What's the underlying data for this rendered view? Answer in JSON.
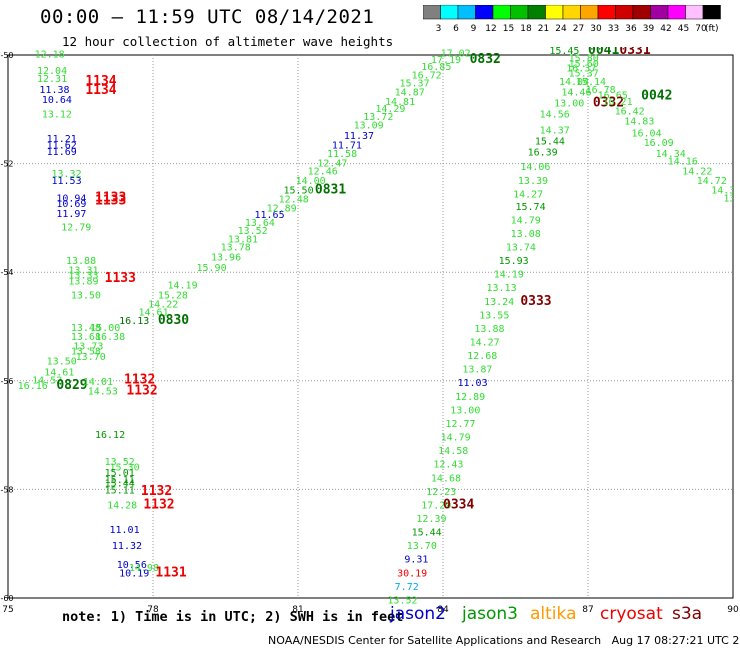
{
  "header": {
    "title": "00:00 – 11:59 UTC 08/14/2021",
    "subtitle": "12 hour collection of altimeter wave heights"
  },
  "legend": {
    "unit_label": "(ft)",
    "bins": [
      {
        "label": "3",
        "color": "#808080"
      },
      {
        "label": "6",
        "color": "#00ffff"
      },
      {
        "label": "9",
        "color": "#00bfff"
      },
      {
        "label": "12",
        "color": "#0000ff"
      },
      {
        "label": "15",
        "color": "#00ff00"
      },
      {
        "label": "18",
        "color": "#00c000"
      },
      {
        "label": "21",
        "color": "#008000"
      },
      {
        "label": "24",
        "color": "#ffff00"
      },
      {
        "label": "27",
        "color": "#ffd700"
      },
      {
        "label": "30",
        "color": "#ffa500"
      },
      {
        "label": "33",
        "color": "#ff0000"
      },
      {
        "label": "36",
        "color": "#d00000"
      },
      {
        "label": "39",
        "color": "#a00000"
      },
      {
        "label": "42",
        "color": "#a000a0"
      },
      {
        "label": "45",
        "color": "#ff00ff"
      },
      {
        "label": "70",
        "color": "#ffc0ff"
      },
      {
        "label": "",
        "color": "#000000"
      }
    ]
  },
  "colors": {
    "light_green": "#33dd33",
    "green": "#009900",
    "dark_green": "#007000",
    "blue": "#0000cc",
    "red": "#ee0000",
    "dark_red": "#800000",
    "gray": "#808080",
    "cyan": "#00aaee",
    "grid": "#999999"
  },
  "axes": {
    "x_ticks": [
      "75",
      "78",
      "81",
      "84",
      "87",
      "90"
    ],
    "y_ticks": [
      "-50",
      "-52",
      "-54",
      "-56",
      "-58",
      "-60"
    ]
  },
  "map_labels": [
    {
      "t": "12.18",
      "lon": 75.55,
      "lat": -50.05,
      "c": "light_green"
    },
    {
      "t": "12.04",
      "lon": 75.6,
      "lat": -50.35,
      "c": "light_green"
    },
    {
      "t": "12.31",
      "lon": 75.6,
      "lat": -50.5,
      "c": "light_green"
    },
    {
      "t": "11.38",
      "lon": 75.65,
      "lat": -50.7,
      "c": "blue"
    },
    {
      "t": "10.64",
      "lon": 75.7,
      "lat": -50.88,
      "c": "blue"
    },
    {
      "t": "13.12",
      "lon": 75.7,
      "lat": -51.15,
      "c": "light_green"
    },
    {
      "t": "11.21",
      "lon": 75.8,
      "lat": -51.6,
      "c": "blue"
    },
    {
      "t": "11.62",
      "lon": 75.8,
      "lat": -51.72,
      "c": "blue"
    },
    {
      "t": "11.69",
      "lon": 75.8,
      "lat": -51.84,
      "c": "blue"
    },
    {
      "t": "13.32",
      "lon": 75.9,
      "lat": -52.25,
      "c": "light_green"
    },
    {
      "t": "11.53",
      "lon": 75.9,
      "lat": -52.38,
      "c": "blue"
    },
    {
      "t": "10.94",
      "lon": 76.0,
      "lat": -52.7,
      "c": "blue"
    },
    {
      "t": "10.69",
      "lon": 76.0,
      "lat": -52.8,
      "c": "blue"
    },
    {
      "t": "11.97",
      "lon": 76.0,
      "lat": -52.98,
      "c": "blue"
    },
    {
      "t": "12.79",
      "lon": 76.1,
      "lat": -53.23,
      "c": "light_green"
    },
    {
      "t": "1134",
      "lon": 76.6,
      "lat": -50.55,
      "c": "red",
      "big": true
    },
    {
      "t": "1134",
      "lon": 76.6,
      "lat": -50.72,
      "c": "red",
      "big": true
    },
    {
      "t": "1133",
      "lon": 76.8,
      "lat": -52.7,
      "c": "red",
      "big": true
    },
    {
      "t": "1133",
      "lon": 76.8,
      "lat": -52.75,
      "c": "red",
      "big": true
    },
    {
      "t": "13.88",
      "lon": 76.2,
      "lat": -53.85,
      "c": "light_green"
    },
    {
      "t": "13.31",
      "lon": 76.25,
      "lat": -54.02,
      "c": "light_green"
    },
    {
      "t": "13.33",
      "lon": 76.25,
      "lat": -54.12,
      "c": "light_green"
    },
    {
      "t": "13.89",
      "lon": 76.25,
      "lat": -54.23,
      "c": "light_green"
    },
    {
      "t": "13.50",
      "lon": 76.3,
      "lat": -54.48,
      "c": "light_green"
    },
    {
      "t": "1133",
      "lon": 77.0,
      "lat": -54.18,
      "c": "red",
      "big": true
    },
    {
      "t": "13.48",
      "lon": 76.3,
      "lat": -55.08,
      "c": "light_green"
    },
    {
      "t": "15.00",
      "lon": 76.7,
      "lat": -55.08,
      "c": "light_green"
    },
    {
      "t": "13.68",
      "lon": 76.3,
      "lat": -55.25,
      "c": "light_green"
    },
    {
      "t": "16.38",
      "lon": 76.8,
      "lat": -55.25,
      "c": "light_green"
    },
    {
      "t": "13.73",
      "lon": 76.35,
      "lat": -55.42,
      "c": "light_green"
    },
    {
      "t": "13.58",
      "lon": 76.3,
      "lat": -55.52,
      "c": "light_green"
    },
    {
      "t": "13.70",
      "lon": 76.4,
      "lat": -55.62,
      "c": "light_green"
    },
    {
      "t": "13.50",
      "lon": 75.8,
      "lat": -55.7,
      "c": "light_green"
    },
    {
      "t": "14.61",
      "lon": 75.75,
      "lat": -55.9,
      "c": "light_green"
    },
    {
      "t": "14.52",
      "lon": 75.5,
      "lat": -56.05,
      "c": "light_green"
    },
    {
      "t": "16.16",
      "lon": 75.2,
      "lat": -56.15,
      "c": "light_green"
    },
    {
      "t": "0829",
      "lon": 76.0,
      "lat": -56.15,
      "c": "dark_green",
      "big": true
    },
    {
      "t": "14.01",
      "lon": 76.55,
      "lat": -56.08,
      "c": "light_green"
    },
    {
      "t": "14.53",
      "lon": 76.65,
      "lat": -56.25,
      "c": "light_green"
    },
    {
      "t": "1132",
      "lon": 77.4,
      "lat": -56.05,
      "c": "red",
      "big": true
    },
    {
      "t": "1132",
      "lon": 77.45,
      "lat": -56.25,
      "c": "red",
      "big": true
    },
    {
      "t": "15.28",
      "lon": 78.1,
      "lat": -54.48,
      "c": "light_green"
    },
    {
      "t": "14.19",
      "lon": 78.3,
      "lat": -54.3,
      "c": "light_green"
    },
    {
      "t": "14.22",
      "lon": 77.9,
      "lat": -54.65,
      "c": "light_green"
    },
    {
      "t": "14.61",
      "lon": 77.7,
      "lat": -54.8,
      "c": "light_green"
    },
    {
      "t": "16.13",
      "lon": 77.3,
      "lat": -54.95,
      "c": "dark_green"
    },
    {
      "t": "0830",
      "lon": 78.1,
      "lat": -54.95,
      "c": "dark_green",
      "big": true
    },
    {
      "t": "15.90",
      "lon": 78.9,
      "lat": -53.98,
      "c": "light_green"
    },
    {
      "t": "13.96",
      "lon": 79.2,
      "lat": -53.78,
      "c": "light_green"
    },
    {
      "t": "13.78",
      "lon": 79.4,
      "lat": -53.6,
      "c": "light_green"
    },
    {
      "t": "13.81",
      "lon": 79.55,
      "lat": -53.45,
      "c": "light_green"
    },
    {
      "t": "13.52",
      "lon": 79.75,
      "lat": -53.3,
      "c": "light_green"
    },
    {
      "t": "13.64",
      "lon": 79.9,
      "lat": -53.15,
      "c": "light_green"
    },
    {
      "t": "11.65",
      "lon": 80.1,
      "lat": -53.0,
      "c": "blue"
    },
    {
      "t": "12.89",
      "lon": 80.35,
      "lat": -52.88,
      "c": "light_green"
    },
    {
      "t": "12.48",
      "lon": 80.6,
      "lat": -52.72,
      "c": "light_green"
    },
    {
      "t": "15.50",
      "lon": 80.7,
      "lat": -52.55,
      "c": "green"
    },
    {
      "t": "0831",
      "lon": 81.35,
      "lat": -52.55,
      "c": "dark_green",
      "big": true
    },
    {
      "t": "14.00",
      "lon": 80.95,
      "lat": -52.38,
      "c": "light_green"
    },
    {
      "t": "12.46",
      "lon": 81.2,
      "lat": -52.2,
      "c": "light_green"
    },
    {
      "t": "12.47",
      "lon": 81.4,
      "lat": -52.05,
      "c": "light_green"
    },
    {
      "t": "11.58",
      "lon": 81.6,
      "lat": -51.88,
      "c": "light_green"
    },
    {
      "t": "11.71",
      "lon": 81.7,
      "lat": -51.72,
      "c": "blue"
    },
    {
      "t": "11.37",
      "lon": 81.95,
      "lat": -51.55,
      "c": "blue"
    },
    {
      "t": "13.09",
      "lon": 82.15,
      "lat": -51.35,
      "c": "light_green"
    },
    {
      "t": "13.72",
      "lon": 82.35,
      "lat": -51.2,
      "c": "light_green"
    },
    {
      "t": "14.29",
      "lon": 82.6,
      "lat": -51.05,
      "c": "light_green"
    },
    {
      "t": "14.81",
      "lon": 82.8,
      "lat": -50.92,
      "c": "light_green"
    },
    {
      "t": "14.87",
      "lon": 83.0,
      "lat": -50.75,
      "c": "light_green"
    },
    {
      "t": "15.37",
      "lon": 83.1,
      "lat": -50.58,
      "c": "light_green"
    },
    {
      "t": "16.72",
      "lon": 83.35,
      "lat": -50.43,
      "c": "light_green"
    },
    {
      "t": "16.85",
      "lon": 83.55,
      "lat": -50.28,
      "c": "light_green"
    },
    {
      "t": "17.19",
      "lon": 83.75,
      "lat": -50.15,
      "c": "light_green"
    },
    {
      "t": "17.02",
      "lon": 83.95,
      "lat": -50.03,
      "c": "light_green"
    },
    {
      "t": "0832",
      "lon": 84.55,
      "lat": -50.15,
      "c": "dark_green",
      "big": true
    },
    {
      "t": "15.45",
      "lon": 86.2,
      "lat": -49.98,
      "c": "green"
    },
    {
      "t": "0041",
      "lon": 87.0,
      "lat": -49.98,
      "c": "dark_green",
      "big": true
    },
    {
      "t": "0331",
      "lon": 87.65,
      "lat": -49.98,
      "c": "dark_red",
      "big": true
    },
    {
      "t": "15.80",
      "lon": 86.6,
      "lat": -50.12,
      "c": "light_green"
    },
    {
      "t": "15.60",
      "lon": 86.6,
      "lat": -50.22,
      "c": "light_green"
    },
    {
      "t": "16.37",
      "lon": 86.55,
      "lat": -50.3,
      "c": "light_green"
    },
    {
      "t": "15.37",
      "lon": 86.6,
      "lat": -50.4,
      "c": "light_green"
    },
    {
      "t": "14.04",
      "lon": 86.4,
      "lat": -50.55,
      "c": "light_green"
    },
    {
      "t": "15.14",
      "lon": 86.75,
      "lat": -50.55,
      "c": "light_green"
    },
    {
      "t": "14.46",
      "lon": 86.45,
      "lat": -50.75,
      "c": "light_green"
    },
    {
      "t": "16.78",
      "lon": 86.95,
      "lat": -50.7,
      "c": "light_green"
    },
    {
      "t": "16.65",
      "lon": 87.2,
      "lat": -50.8,
      "c": "light_green"
    },
    {
      "t": "0042",
      "lon": 88.1,
      "lat": -50.82,
      "c": "dark_green",
      "big": true
    },
    {
      "t": "13.00",
      "lon": 86.3,
      "lat": -50.95,
      "c": "light_green"
    },
    {
      "t": "0332",
      "lon": 87.1,
      "lat": -50.95,
      "c": "dark_red",
      "big": true
    },
    {
      "t": "16.21",
      "lon": 87.3,
      "lat": -50.92,
      "c": "light_green"
    },
    {
      "t": "16.42",
      "lon": 87.55,
      "lat": -51.1,
      "c": "light_green"
    },
    {
      "t": "14.56",
      "lon": 86.0,
      "lat": -51.15,
      "c": "light_green"
    },
    {
      "t": "14.83",
      "lon": 87.75,
      "lat": -51.28,
      "c": "light_green"
    },
    {
      "t": "14.37",
      "lon": 86.0,
      "lat": -51.45,
      "c": "light_green"
    },
    {
      "t": "16.04",
      "lon": 87.9,
      "lat": -51.5,
      "c": "light_green"
    },
    {
      "t": "15.44",
      "lon": 85.9,
      "lat": -51.65,
      "c": "green"
    },
    {
      "t": "16.09",
      "lon": 88.15,
      "lat": -51.68,
      "c": "light_green"
    },
    {
      "t": "16.39",
      "lon": 85.75,
      "lat": -51.85,
      "c": "green"
    },
    {
      "t": "14.34",
      "lon": 88.4,
      "lat": -51.88,
      "c": "light_green"
    },
    {
      "t": "14.16",
      "lon": 88.65,
      "lat": -52.02,
      "c": "light_green"
    },
    {
      "t": "14.06",
      "lon": 85.6,
      "lat": -52.12,
      "c": "light_green"
    },
    {
      "t": "14.22",
      "lon": 88.95,
      "lat": -52.2,
      "c": "light_green"
    },
    {
      "t": "13.39",
      "lon": 85.55,
      "lat": -52.38,
      "c": "light_green"
    },
    {
      "t": "14.72",
      "lon": 89.25,
      "lat": -52.38,
      "c": "light_green"
    },
    {
      "t": "14.27",
      "lon": 85.45,
      "lat": -52.62,
      "c": "light_green"
    },
    {
      "t": "14.39",
      "lon": 89.55,
      "lat": -52.55,
      "c": "light_green"
    },
    {
      "t": "13.68",
      "lon": 89.8,
      "lat": -52.7,
      "c": "light_green"
    },
    {
      "t": "15.74",
      "lon": 85.5,
      "lat": -52.85,
      "c": "green"
    },
    {
      "t": "14.79",
      "lon": 85.4,
      "lat": -53.1,
      "c": "light_green"
    },
    {
      "t": "13.08",
      "lon": 85.4,
      "lat": -53.35,
      "c": "light_green"
    },
    {
      "t": "13.74",
      "lon": 85.3,
      "lat": -53.6,
      "c": "light_green"
    },
    {
      "t": "15.93",
      "lon": 85.15,
      "lat": -53.85,
      "c": "green"
    },
    {
      "t": "14.19",
      "lon": 85.05,
      "lat": -54.1,
      "c": "light_green"
    },
    {
      "t": "13.13",
      "lon": 84.9,
      "lat": -54.35,
      "c": "light_green"
    },
    {
      "t": "13.24",
      "lon": 84.85,
      "lat": -54.6,
      "c": "light_green"
    },
    {
      "t": "0333",
      "lon": 85.6,
      "lat": -54.6,
      "c": "dark_red",
      "big": true
    },
    {
      "t": "13.55",
      "lon": 84.75,
      "lat": -54.85,
      "c": "light_green"
    },
    {
      "t": "13.88",
      "lon": 84.65,
      "lat": -55.1,
      "c": "light_green"
    },
    {
      "t": "14.27",
      "lon": 84.55,
      "lat": -55.35,
      "c": "light_green"
    },
    {
      "t": "12.68",
      "lon": 84.5,
      "lat": -55.6,
      "c": "light_green"
    },
    {
      "t": "13.87",
      "lon": 84.4,
      "lat": -55.85,
      "c": "light_green"
    },
    {
      "t": "11.03",
      "lon": 84.3,
      "lat": -56.1,
      "c": "blue"
    },
    {
      "t": "12.89",
      "lon": 84.25,
      "lat": -56.35,
      "c": "light_green"
    },
    {
      "t": "13.00",
      "lon": 84.15,
      "lat": -56.6,
      "c": "light_green"
    },
    {
      "t": "12.77",
      "lon": 84.05,
      "lat": -56.85,
      "c": "light_green"
    },
    {
      "t": "14.79",
      "lon": 83.95,
      "lat": -57.1,
      "c": "light_green"
    },
    {
      "t": "14.58",
      "lon": 83.9,
      "lat": -57.35,
      "c": "light_green"
    },
    {
      "t": "12.43",
      "lon": 83.8,
      "lat": -57.6,
      "c": "light_green"
    },
    {
      "t": "14.68",
      "lon": 83.75,
      "lat": -57.85,
      "c": "light_green"
    },
    {
      "t": "12.23",
      "lon": 83.65,
      "lat": -58.1,
      "c": "light_green"
    },
    {
      "t": "17.29",
      "lon": 83.55,
      "lat": -58.35,
      "c": "light_green"
    },
    {
      "t": "0334",
      "lon": 84.0,
      "lat": -58.35,
      "c": "dark_red",
      "big": true
    },
    {
      "t": "12.39",
      "lon": 83.45,
      "lat": -58.6,
      "c": "light_green"
    },
    {
      "t": "15.44",
      "lon": 83.35,
      "lat": -58.85,
      "c": "green"
    },
    {
      "t": "13.70",
      "lon": 83.25,
      "lat": -59.1,
      "c": "light_green"
    },
    {
      "t": "9.31",
      "lon": 83.2,
      "lat": -59.35,
      "c": "blue"
    },
    {
      "t": "30.19",
      "lon": 83.05,
      "lat": -59.6,
      "c": "red"
    },
    {
      "t": "7.72",
      "lon": 83.0,
      "lat": -59.85,
      "c": "cyan"
    },
    {
      "t": "13.52",
      "lon": 82.85,
      "lat": -60.1,
      "c": "light_green"
    },
    {
      "t": "17.78",
      "lon": 82.75,
      "lat": -60.35,
      "c": "green"
    },
    {
      "t": "16.12",
      "lon": 76.8,
      "lat": -57.05,
      "c": "green"
    },
    {
      "t": "13.52",
      "lon": 77.0,
      "lat": -57.55,
      "c": "light_green"
    },
    {
      "t": "15.30",
      "lon": 77.1,
      "lat": -57.65,
      "c": "light_green"
    },
    {
      "t": "15.01",
      "lon": 77.0,
      "lat": -57.75,
      "c": "green"
    },
    {
      "t": "15.11",
      "lon": 77.0,
      "lat": -57.88,
      "c": "green"
    },
    {
      "t": "15.44",
      "lon": 77.0,
      "lat": -57.95,
      "c": "green"
    },
    {
      "t": "15.11",
      "lon": 77.0,
      "lat": -58.08,
      "c": "green"
    },
    {
      "t": "14.28",
      "lon": 77.05,
      "lat": -58.35,
      "c": "light_green"
    },
    {
      "t": "1132",
      "lon": 77.75,
      "lat": -58.1,
      "c": "red",
      "big": true
    },
    {
      "t": "1132",
      "lon": 77.8,
      "lat": -58.35,
      "c": "red",
      "big": true
    },
    {
      "t": "11.01",
      "lon": 77.1,
      "lat": -58.8,
      "c": "blue"
    },
    {
      "t": "11.32",
      "lon": 77.15,
      "lat": -59.1,
      "c": "blue"
    },
    {
      "t": "10.56",
      "lon": 77.25,
      "lat": -59.45,
      "c": "blue"
    },
    {
      "t": "14.98",
      "lon": 77.5,
      "lat": -59.5,
      "c": "light_green"
    },
    {
      "t": "10.19",
      "lon": 77.3,
      "lat": -59.6,
      "c": "blue"
    },
    {
      "t": "1131",
      "lon": 78.05,
      "lat": -59.6,
      "c": "red",
      "big": true
    },
    {
      "t": "2.27",
      "lon": 77.65,
      "lat": -60.4,
      "c": "gray"
    },
    {
      "t": "1131",
      "lon": 78.25,
      "lat": -60.4,
      "c": "red",
      "big": true
    }
  ],
  "note": {
    "text": "note: 1) Time is in UTC; 2) SWH is in feet",
    "satellites": [
      {
        "name": "jason2",
        "color": "#0000cc"
      },
      {
        "name": "jason3",
        "color": "#009900"
      },
      {
        "name": "altika",
        "color": "#ff9900"
      },
      {
        "name": "cryosat",
        "color": "#ee0000"
      },
      {
        "name": "s3a",
        "color": "#800000"
      }
    ]
  },
  "footer": {
    "org": "NOAA/NESDIS Center for Satellite Applications and Research",
    "timestamp": "Aug 17 08:27:21 UTC 2021"
  }
}
